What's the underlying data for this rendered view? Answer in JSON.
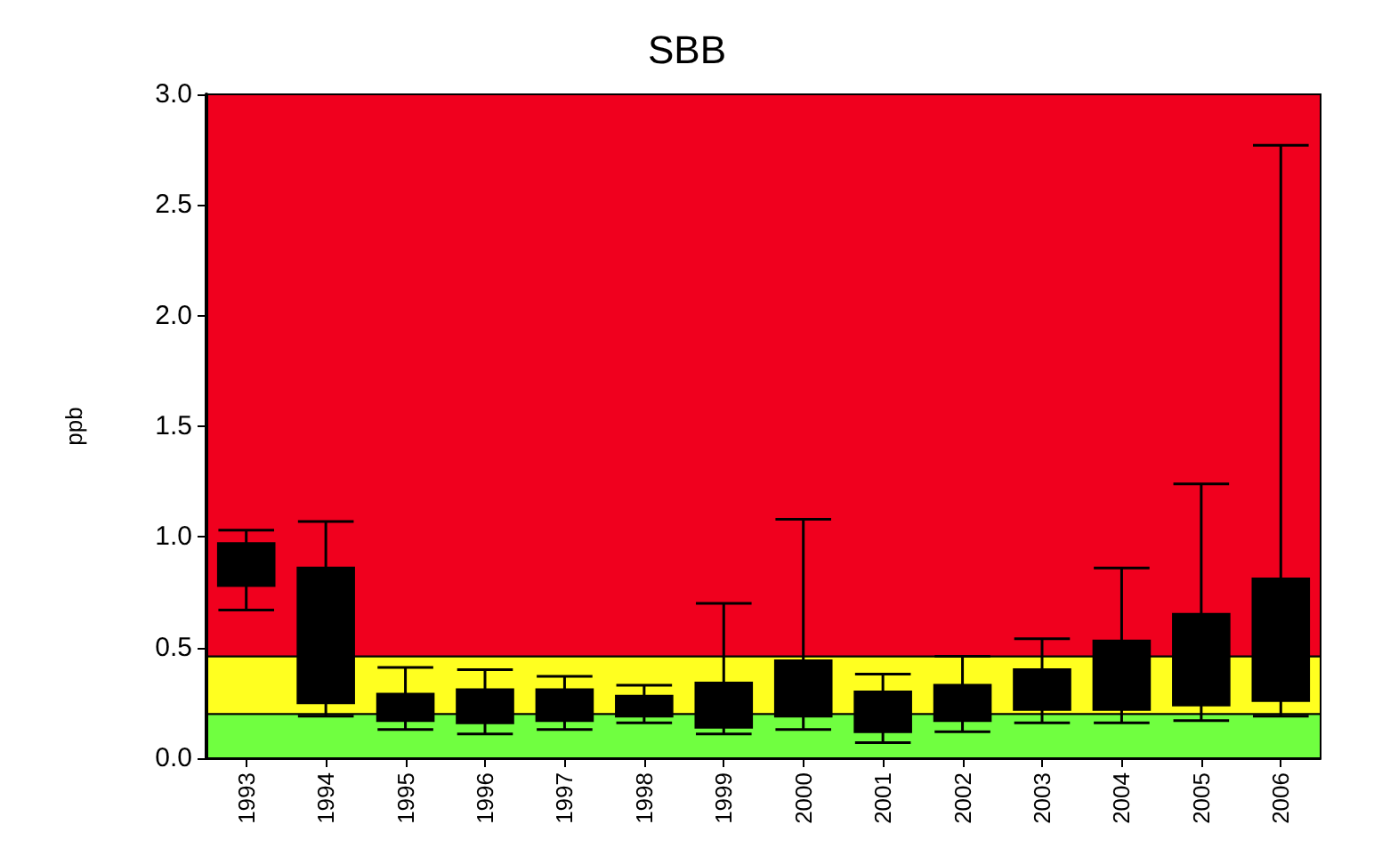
{
  "chart_data": {
    "type": "box",
    "title": "SBB",
    "ylabel": "ppb",
    "categories": [
      "1993",
      "1994",
      "1995",
      "1996",
      "1997",
      "1998",
      "1999",
      "2000",
      "2001",
      "2002",
      "2003",
      "2004",
      "2005",
      "2006"
    ],
    "boxes": [
      {
        "low": 0.67,
        "q1": 0.78,
        "median": 0.87,
        "q3": 0.97,
        "high": 1.03
      },
      {
        "low": 0.19,
        "q1": 0.25,
        "median": 0.51,
        "q3": 0.86,
        "high": 1.07
      },
      {
        "low": 0.13,
        "q1": 0.17,
        "median": 0.23,
        "q3": 0.29,
        "high": 0.41
      },
      {
        "low": 0.11,
        "q1": 0.16,
        "median": 0.22,
        "q3": 0.31,
        "high": 0.4
      },
      {
        "low": 0.13,
        "q1": 0.17,
        "median": 0.24,
        "q3": 0.31,
        "high": 0.37
      },
      {
        "low": 0.16,
        "q1": 0.19,
        "median": 0.23,
        "q3": 0.28,
        "high": 0.33
      },
      {
        "low": 0.11,
        "q1": 0.14,
        "median": 0.19,
        "q3": 0.34,
        "high": 0.7
      },
      {
        "low": 0.13,
        "q1": 0.19,
        "median": 0.27,
        "q3": 0.44,
        "high": 1.08
      },
      {
        "low": 0.07,
        "q1": 0.12,
        "median": 0.2,
        "q3": 0.3,
        "high": 0.38
      },
      {
        "low": 0.12,
        "q1": 0.17,
        "median": 0.26,
        "q3": 0.33,
        "high": 0.46
      },
      {
        "low": 0.16,
        "q1": 0.22,
        "median": 0.33,
        "q3": 0.4,
        "high": 0.54
      },
      {
        "low": 0.16,
        "q1": 0.22,
        "median": 0.33,
        "q3": 0.53,
        "high": 0.86
      },
      {
        "low": 0.17,
        "q1": 0.24,
        "median": 0.35,
        "q3": 0.65,
        "high": 1.24
      },
      {
        "low": 0.19,
        "q1": 0.26,
        "median": 0.36,
        "q3": 0.81,
        "high": 2.77
      }
    ],
    "color": "#000000",
    "ylim": [
      0,
      3
    ],
    "yticks": [
      {
        "value": 0,
        "label": "0.0"
      },
      0.5,
      {
        "value": 1,
        "label": "1.0"
      },
      1.5,
      {
        "value": 2,
        "label": "2.0"
      },
      2.5,
      {
        "value": 3,
        "label": "3.0"
      }
    ],
    "bands": [
      {
        "axis": "y",
        "from": 0,
        "to": 0.2,
        "color": "#70ff40"
      },
      {
        "axis": "y",
        "from": 0.2,
        "to": 0.46,
        "color": "#ffff20"
      },
      {
        "axis": "y",
        "from": 0.46,
        "to": 3,
        "color": "#f0001e"
      }
    ],
    "grid": false
  }
}
